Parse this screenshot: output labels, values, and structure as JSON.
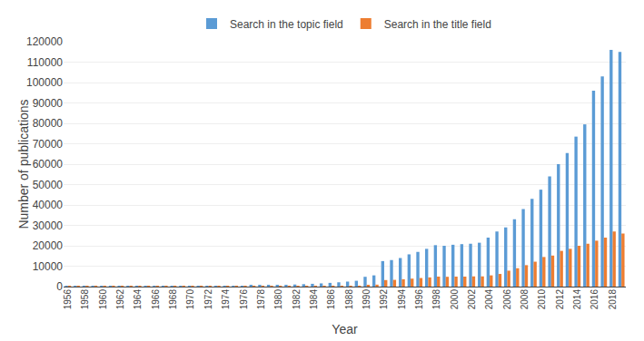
{
  "chart_data": {
    "type": "bar",
    "xlabel": "Year",
    "ylabel": "Number of publications",
    "categories": [
      "1956",
      null,
      "1958",
      null,
      "1960",
      null,
      "1962",
      null,
      "1964",
      null,
      "1966",
      null,
      "1968",
      null,
      "1970",
      null,
      "1972",
      null,
      "1974",
      null,
      "1976",
      null,
      "1978",
      null,
      "1980",
      null,
      "1982",
      null,
      "1984",
      null,
      "1986",
      null,
      "1988",
      null,
      "1990",
      null,
      "1992",
      null,
      "1994",
      null,
      "1996",
      null,
      "1998",
      null,
      "2000",
      null,
      "2002",
      null,
      "2004",
      null,
      "2006",
      null,
      "2008",
      null,
      "2010",
      null,
      "2012",
      null,
      "2014",
      null,
      "2016",
      null,
      "2018",
      null
    ],
    "series": [
      {
        "name": "Search in the topic field",
        "color": "#5B9BD5",
        "values": [
          10,
          15,
          20,
          25,
          30,
          35,
          40,
          50,
          60,
          70,
          85,
          100,
          120,
          145,
          170,
          200,
          235,
          275,
          320,
          370,
          430,
          500,
          580,
          670,
          770,
          890,
          1020,
          1180,
          1360,
          1570,
          1820,
          2100,
          2450,
          2850,
          4800,
          5500,
          12500,
          13000,
          14000,
          15800,
          17000,
          18500,
          20300,
          20000,
          20500,
          20800,
          21000,
          21500,
          24000,
          27000,
          29000,
          33000,
          38000,
          43000,
          47500,
          54000,
          60000,
          65500,
          73500,
          79500,
          96000,
          103000,
          116000,
          115000
        ]
      },
      {
        "name": "Search in the title field",
        "color": "#ED7D31",
        "values": [
          3,
          4,
          5,
          5,
          6,
          6,
          7,
          8,
          9,
          10,
          12,
          14,
          17,
          20,
          23,
          27,
          32,
          37,
          44,
          51,
          60,
          70,
          82,
          96,
          112,
          130,
          151,
          175,
          204,
          237,
          275,
          320,
          372,
          433,
          800,
          950,
          3200,
          3300,
          3600,
          3900,
          4200,
          4500,
          4900,
          4800,
          4900,
          4900,
          5000,
          5000,
          5500,
          6200,
          7800,
          9000,
          10500,
          12200,
          14500,
          15200,
          17500,
          18500,
          20000,
          21000,
          22500,
          24000,
          27000,
          26000
        ]
      }
    ],
    "ylim": [
      0,
      120000
    ],
    "yticks": [
      0,
      10000,
      20000,
      30000,
      40000,
      50000,
      60000,
      70000,
      80000,
      90000,
      100000,
      110000,
      120000
    ],
    "grid": true,
    "legend": "top"
  }
}
